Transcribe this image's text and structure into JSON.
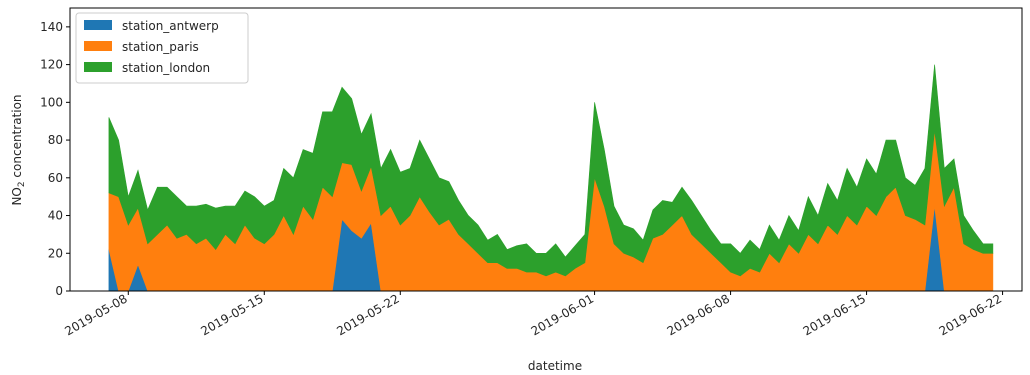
{
  "chart_data": {
    "type": "area",
    "stacked": true,
    "xlabel": "datetime",
    "ylabel_main": "NO",
    "ylabel_sub": "2",
    "ylabel_rest": " concentration",
    "ylim": [
      0,
      150
    ],
    "xlim": [
      "2019-05-05",
      "2019-06-23"
    ],
    "yticks": [
      0,
      20,
      40,
      60,
      80,
      100,
      120,
      140
    ],
    "xticks": [
      "2019-05-08",
      "2019-05-15",
      "2019-05-22",
      "2019-06-01",
      "2019-06-08",
      "2019-06-15",
      "2019-06-22"
    ],
    "legend_position": "top-left",
    "x": [
      "2019-05-07",
      "2019-05-07",
      "2019-05-08",
      "2019-05-08",
      "2019-05-09",
      "2019-05-09",
      "2019-05-10",
      "2019-05-10",
      "2019-05-11",
      "2019-05-11",
      "2019-05-12",
      "2019-05-12",
      "2019-05-13",
      "2019-05-13",
      "2019-05-14",
      "2019-05-14",
      "2019-05-15",
      "2019-05-15",
      "2019-05-16",
      "2019-05-16",
      "2019-05-17",
      "2019-05-17",
      "2019-05-18",
      "2019-05-18",
      "2019-05-19",
      "2019-05-19",
      "2019-05-20",
      "2019-05-20",
      "2019-05-21",
      "2019-05-21",
      "2019-05-22",
      "2019-05-22",
      "2019-05-23",
      "2019-05-23",
      "2019-05-24",
      "2019-05-24",
      "2019-05-25",
      "2019-05-25",
      "2019-05-26",
      "2019-05-26",
      "2019-05-27",
      "2019-05-27",
      "2019-05-28",
      "2019-05-28",
      "2019-05-29",
      "2019-05-29",
      "2019-05-30",
      "2019-05-30",
      "2019-05-31",
      "2019-05-31",
      "2019-06-01",
      "2019-06-01",
      "2019-06-02",
      "2019-06-02",
      "2019-06-03",
      "2019-06-03",
      "2019-06-04",
      "2019-06-04",
      "2019-06-05",
      "2019-06-05",
      "2019-06-06",
      "2019-06-06",
      "2019-06-07",
      "2019-06-07",
      "2019-06-08",
      "2019-06-08",
      "2019-06-09",
      "2019-06-09",
      "2019-06-10",
      "2019-06-10",
      "2019-06-11",
      "2019-06-11",
      "2019-06-12",
      "2019-06-12",
      "2019-06-13",
      "2019-06-13",
      "2019-06-14",
      "2019-06-14",
      "2019-06-15",
      "2019-06-15",
      "2019-06-16",
      "2019-06-16",
      "2019-06-17",
      "2019-06-17",
      "2019-06-18",
      "2019-06-18",
      "2019-06-19",
      "2019-06-19",
      "2019-06-20",
      "2019-06-20",
      "2019-06-21",
      "2019-06-21"
    ],
    "series": [
      {
        "name": "station_antwerp",
        "color": "#1f77b4",
        "values": [
          22,
          0,
          0,
          14,
          0,
          0,
          0,
          0,
          0,
          0,
          0,
          0,
          0,
          0,
          0,
          0,
          0,
          0,
          0,
          0,
          0,
          0,
          0,
          0,
          38,
          32,
          28,
          36,
          0,
          0,
          0,
          0,
          0,
          0,
          0,
          0,
          0,
          0,
          0,
          0,
          0,
          0,
          0,
          0,
          0,
          0,
          0,
          0,
          0,
          0,
          0,
          0,
          0,
          0,
          0,
          0,
          0,
          0,
          0,
          0,
          0,
          0,
          0,
          0,
          0,
          0,
          0,
          0,
          0,
          0,
          0,
          0,
          0,
          0,
          0,
          0,
          0,
          0,
          0,
          0,
          0,
          0,
          0,
          0,
          0,
          45,
          0,
          0,
          0,
          0,
          0,
          0
        ]
      },
      {
        "name": "station_paris",
        "color": "#ff7f0e",
        "values": [
          30,
          50,
          35,
          30,
          25,
          30,
          35,
          28,
          30,
          25,
          28,
          22,
          30,
          25,
          35,
          28,
          25,
          30,
          40,
          30,
          45,
          38,
          55,
          50,
          30,
          35,
          25,
          30,
          40,
          45,
          35,
          40,
          50,
          42,
          35,
          38,
          30,
          25,
          20,
          15,
          15,
          12,
          12,
          10,
          10,
          8,
          10,
          8,
          12,
          15,
          60,
          45,
          25,
          20,
          18,
          15,
          28,
          30,
          35,
          40,
          30,
          25,
          20,
          15,
          10,
          8,
          12,
          10,
          20,
          15,
          25,
          20,
          30,
          25,
          35,
          30,
          40,
          35,
          45,
          40,
          50,
          55,
          40,
          38,
          35,
          40,
          45,
          55,
          25,
          22,
          20,
          20
        ]
      },
      {
        "name": "station_london",
        "color": "#2ca02c",
        "values": [
          40,
          30,
          15,
          20,
          18,
          25,
          20,
          22,
          15,
          20,
          18,
          22,
          15,
          20,
          18,
          22,
          20,
          18,
          25,
          30,
          30,
          35,
          40,
          45,
          40,
          35,
          30,
          28,
          25,
          30,
          28,
          25,
          30,
          28,
          25,
          20,
          18,
          15,
          15,
          12,
          15,
          10,
          12,
          15,
          10,
          12,
          15,
          10,
          12,
          15,
          40,
          30,
          20,
          15,
          15,
          12,
          15,
          18,
          12,
          15,
          18,
          15,
          12,
          10,
          15,
          12,
          15,
          12,
          15,
          12,
          15,
          12,
          20,
          15,
          22,
          18,
          25,
          20,
          25,
          22,
          30,
          25,
          20,
          18,
          30,
          35,
          20,
          15,
          15,
          10,
          5,
          5
        ]
      }
    ]
  }
}
